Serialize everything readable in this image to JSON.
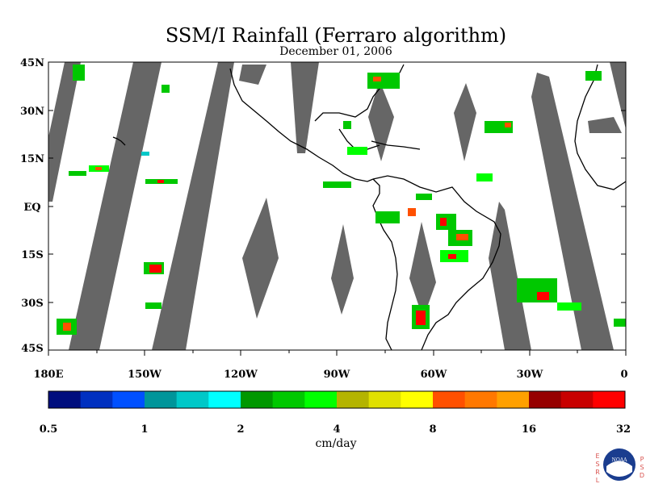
{
  "title": "SSM/I Rainfall (Ferraro algorithm)",
  "date": "December 01, 2006",
  "map": {
    "lat_labels": [
      "45N",
      "30N",
      "15N",
      "EQ",
      "15S",
      "30S",
      "45S"
    ],
    "lon_labels": [
      "180E",
      "150W",
      "120W",
      "90W",
      "60W",
      "30W",
      "0"
    ],
    "lat_range": [
      -45,
      45
    ],
    "lon_range": [
      -180,
      0
    ],
    "no_data_color": "#666666",
    "coastline_color": "#000000"
  },
  "colorbar": {
    "unit_label": "cm/day",
    "tick_labels": [
      "0.5",
      "1",
      "2",
      "4",
      "8",
      "16",
      "32"
    ],
    "colors": [
      "#000e7e",
      "#0030c0",
      "#0050ff",
      "#00959a",
      "#00c8c8",
      "#00ffff",
      "#009800",
      "#00c800",
      "#00ff00",
      "#b4b400",
      "#e0e000",
      "#ffff00",
      "#ff5000",
      "#ff7800",
      "#ffa000",
      "#960000",
      "#c80000",
      "#ff0000"
    ]
  },
  "logo": {
    "left_letters": [
      "E",
      "S",
      "R",
      "L"
    ],
    "right_letters": [
      "P",
      "S",
      "D"
    ],
    "center_text": "NOAA"
  }
}
